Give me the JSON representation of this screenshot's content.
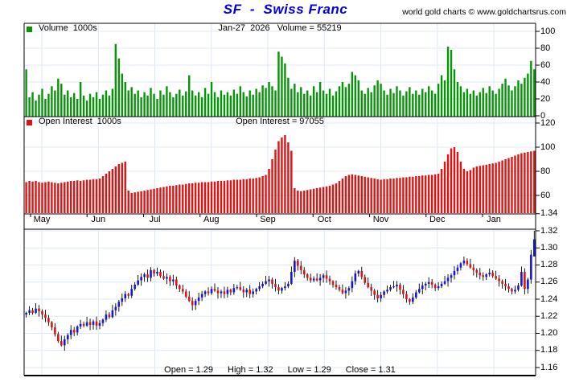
{
  "title": "SF  -  Swiss Franc",
  "copyright": "world gold charts © www.goldchartsrus.com",
  "colors": {
    "title_blue": "#0000dd",
    "volume_green": "#089408",
    "oi_red": "#e01212",
    "candle_up_blue": "#1616d6",
    "candle_down_red": "#e01212",
    "gridline": "#dce9f5",
    "frame": "#000000"
  },
  "volume_panel": {
    "legend": "Volume  1000s",
    "header": "Jan-27  2026   Volume = 55219",
    "yticks": [
      0,
      20,
      40,
      60,
      80,
      100
    ]
  },
  "oi_panel": {
    "legend": "Open Interest  1000s",
    "header": "Open Interest = 97055",
    "yticks": [
      60,
      80,
      100,
      120
    ]
  },
  "price_panel": {
    "yticks": [
      1.16,
      1.18,
      1.2,
      1.22,
      1.24,
      1.26,
      1.28,
      1.3,
      1.32,
      1.34
    ]
  },
  "months": [
    "May",
    "Jun",
    "Jul",
    "Aug",
    "Sep",
    "Oct",
    "Nov",
    "Dec",
    "Jan"
  ],
  "footer": {
    "open": "Open = 1.29",
    "high": "High = 1.32",
    "low": "Low = 1.29",
    "close": "Close = 1.31"
  },
  "chart_data": [
    {
      "type": "bar",
      "title": "Volume 1000s",
      "legend_position": "top-left",
      "annotation": "Jan-27 2026 Volume = 55219",
      "last_value": 55.219,
      "ylim": [
        0,
        110
      ],
      "yticks": [
        0,
        20,
        40,
        60,
        80,
        100
      ],
      "x_range": "May through late Jan, daily",
      "grid": true,
      "values": [
        55,
        22,
        28,
        18,
        25,
        32,
        20,
        26,
        35,
        30,
        44,
        38,
        25,
        30,
        22,
        27,
        20,
        40,
        24,
        18,
        26,
        22,
        28,
        20,
        25,
        30,
        24,
        32,
        85,
        68,
        50,
        40,
        30,
        34,
        26,
        30,
        22,
        28,
        24,
        33,
        26,
        20,
        30,
        25,
        35,
        28,
        22,
        26,
        31,
        24,
        29,
        48,
        30,
        24,
        28,
        22,
        33,
        26,
        40,
        28,
        22,
        30,
        25,
        28,
        24,
        31,
        26,
        35,
        28,
        23,
        30,
        25,
        32,
        28,
        36,
        33,
        40,
        35,
        30,
        76,
        70,
        62,
        45,
        32,
        38,
        28,
        34,
        26,
        30,
        24,
        35,
        28,
        40,
        30,
        26,
        32,
        24,
        29,
        35,
        40,
        34,
        38,
        52,
        48,
        42,
        30,
        26,
        33,
        28,
        36,
        42,
        38,
        30,
        25,
        32,
        27,
        35,
        30,
        24,
        29,
        34,
        26,
        30,
        25,
        32,
        28,
        35,
        30,
        26,
        38,
        48,
        42,
        82,
        78,
        55,
        40,
        35,
        28,
        32,
        26,
        30,
        24,
        28,
        33,
        27,
        35,
        30,
        26,
        32,
        38,
        44,
        36,
        30,
        35,
        42,
        38,
        45,
        50,
        65,
        55
      ]
    },
    {
      "type": "bar",
      "title": "Open Interest 1000s",
      "legend_position": "top-left",
      "annotation": "Open Interest = 97055",
      "last_value": 97.055,
      "ylim": [
        45,
        130
      ],
      "yticks": [
        60,
        80,
        100,
        120
      ],
      "x_range": "May through late Jan, daily",
      "grid": true,
      "values": [
        71,
        72,
        71.5,
        72,
        71,
        70.5,
        71,
        71.5,
        71,
        70.5,
        70,
        70.5,
        71,
        71.5,
        72,
        72,
        72.5,
        72,
        72.5,
        73,
        73,
        73.5,
        73.5,
        74,
        76,
        78,
        80,
        82,
        84,
        86,
        87,
        88,
        64,
        62,
        62.5,
        63,
        63.5,
        64,
        64.5,
        65,
        65.5,
        66,
        66.5,
        67,
        67.5,
        68,
        68,
        68.5,
        69,
        69,
        69.5,
        70,
        70,
        70.5,
        70.5,
        71,
        71,
        71,
        71.5,
        71.5,
        72,
        72,
        72,
        72.5,
        72.5,
        73,
        73,
        73,
        73.5,
        73.5,
        74,
        74,
        74.5,
        75,
        76,
        77,
        82,
        90,
        98,
        105,
        108,
        110,
        104,
        97,
        66,
        64,
        63.5,
        64,
        64.5,
        65,
        65.5,
        66,
        66.5,
        67,
        67.5,
        68,
        69,
        70,
        72,
        74,
        76,
        77,
        77.5,
        77,
        76.5,
        76,
        75.5,
        75,
        74.5,
        74,
        73.5,
        73,
        73.5,
        73.5,
        74,
        74,
        74.5,
        74.5,
        75,
        75,
        75.5,
        75.5,
        76,
        76,
        76.5,
        76.5,
        77,
        77,
        77.5,
        78,
        82,
        88,
        94,
        99,
        100,
        96,
        88,
        82,
        80,
        81,
        83,
        84,
        84.5,
        85,
        85.5,
        86,
        86.5,
        87,
        88,
        89,
        90,
        91,
        92,
        93,
        94,
        95,
        95.5,
        96,
        96.5,
        97
      ]
    },
    {
      "type": "candlestick",
      "title": "SF - Swiss Franc daily price",
      "ylim": [
        1.15,
        1.322
      ],
      "yticks": [
        1.16,
        1.18,
        1.2,
        1.22,
        1.24,
        1.26,
        1.28,
        1.3,
        1.32,
        1.34
      ],
      "months": [
        "May",
        "Jun",
        "Jul",
        "Aug",
        "Sep",
        "Oct",
        "Nov",
        "Dec",
        "Jan"
      ],
      "grid": true,
      "first_open": 1.222,
      "last_candle": {
        "open": 1.29,
        "high": 1.32,
        "low": 1.29,
        "close": 1.31
      },
      "closes": [
        1.224,
        1.227,
        1.224,
        1.229,
        1.226,
        1.222,
        1.218,
        1.213,
        1.207,
        1.199,
        1.191,
        1.186,
        1.193,
        1.198,
        1.204,
        1.201,
        1.208,
        1.211,
        1.209,
        1.213,
        1.21,
        1.214,
        1.209,
        1.212,
        1.216,
        1.222,
        1.219,
        1.227,
        1.231,
        1.237,
        1.241,
        1.246,
        1.244,
        1.252,
        1.257,
        1.262,
        1.266,
        1.269,
        1.265,
        1.274,
        1.27,
        1.272,
        1.267,
        1.264,
        1.266,
        1.261,
        1.263,
        1.256,
        1.252,
        1.249,
        1.243,
        1.238,
        1.233,
        1.238,
        1.242,
        1.246,
        1.249,
        1.247,
        1.252,
        1.25,
        1.247,
        1.249,
        1.246,
        1.251,
        1.248,
        1.253,
        1.254,
        1.251,
        1.248,
        1.251,
        1.246,
        1.249,
        1.252,
        1.255,
        1.258,
        1.261,
        1.263,
        1.258,
        1.254,
        1.25,
        1.253,
        1.255,
        1.258,
        1.272,
        1.285,
        1.279,
        1.274,
        1.269,
        1.265,
        1.262,
        1.264,
        1.262,
        1.265,
        1.268,
        1.264,
        1.261,
        1.257,
        1.254,
        1.251,
        1.247,
        1.25,
        1.253,
        1.261,
        1.27,
        1.273,
        1.266,
        1.259,
        1.254,
        1.25,
        1.245,
        1.241,
        1.245,
        1.249,
        1.251,
        1.254,
        1.255,
        1.257,
        1.251,
        1.246,
        1.24,
        1.237,
        1.242,
        1.248,
        1.252,
        1.256,
        1.258,
        1.26,
        1.257,
        1.253,
        1.255,
        1.258,
        1.261,
        1.265,
        1.268,
        1.273,
        1.277,
        1.282,
        1.285,
        1.281,
        1.277,
        1.274,
        1.271,
        1.268,
        1.266,
        1.269,
        1.271,
        1.267,
        1.264,
        1.261,
        1.258,
        1.255,
        1.252,
        1.249,
        1.251,
        1.256,
        1.272,
        1.252,
        1.263,
        1.292,
        1.31
      ]
    }
  ]
}
